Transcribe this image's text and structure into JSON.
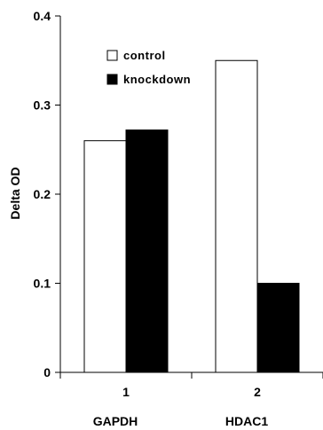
{
  "chart_data": {
    "type": "bar",
    "categories": [
      "1",
      "2"
    ],
    "category_names": [
      "GAPDH",
      "HDAC1"
    ],
    "ylabel": "Delta OD",
    "ylim": [
      0,
      0.4
    ],
    "yticks": [
      "0",
      "0.1",
      "0.2",
      "0.3",
      "0.4"
    ],
    "grid": false,
    "legend_position": "top-left",
    "series": [
      {
        "name": "control",
        "values": [
          0.26,
          0.35
        ],
        "color": "#ffffff"
      },
      {
        "name": "knockdown",
        "values": [
          0.272,
          0.1
        ],
        "color": "#000000"
      }
    ]
  }
}
